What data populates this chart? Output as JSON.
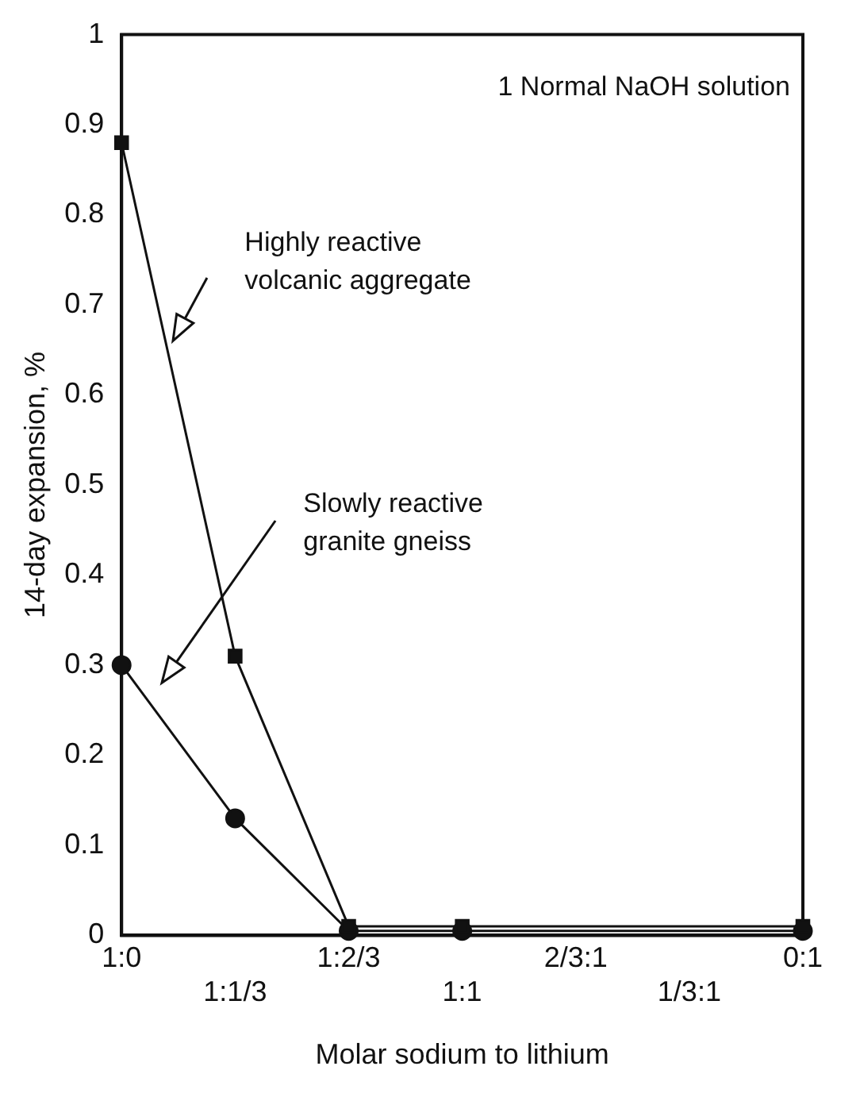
{
  "chart_data": {
    "type": "line",
    "xlabel": "Molar sodium to lithium",
    "ylabel": "14-day expansion, %",
    "categories": [
      "1:0",
      "1:1/3",
      "1:2/3",
      "1:1",
      "2/3:1",
      "1/3:1",
      "0:1"
    ],
    "series": [
      {
        "color": "#111111",
        "marker": "square",
        "values": [
          0.88,
          0.31,
          0.01,
          0.01,
          null,
          null,
          0.01
        ]
      },
      {
        "color": "#111111",
        "marker": "circle",
        "values": [
          0.3,
          0.13,
          0.005,
          0.005,
          null,
          null,
          0.005
        ]
      }
    ],
    "ylim": [
      0,
      1
    ],
    "yticks": [
      0,
      0.1,
      0.2,
      0.3,
      0.4,
      0.5,
      0.6,
      0.7,
      0.8,
      0.9,
      1.0
    ],
    "grid": false,
    "legend": false,
    "annotations": [
      "1 Normal NaOH solution",
      "Highly reactive volcanic aggregate",
      "Slowly reactive granite gneiss"
    ]
  }
}
